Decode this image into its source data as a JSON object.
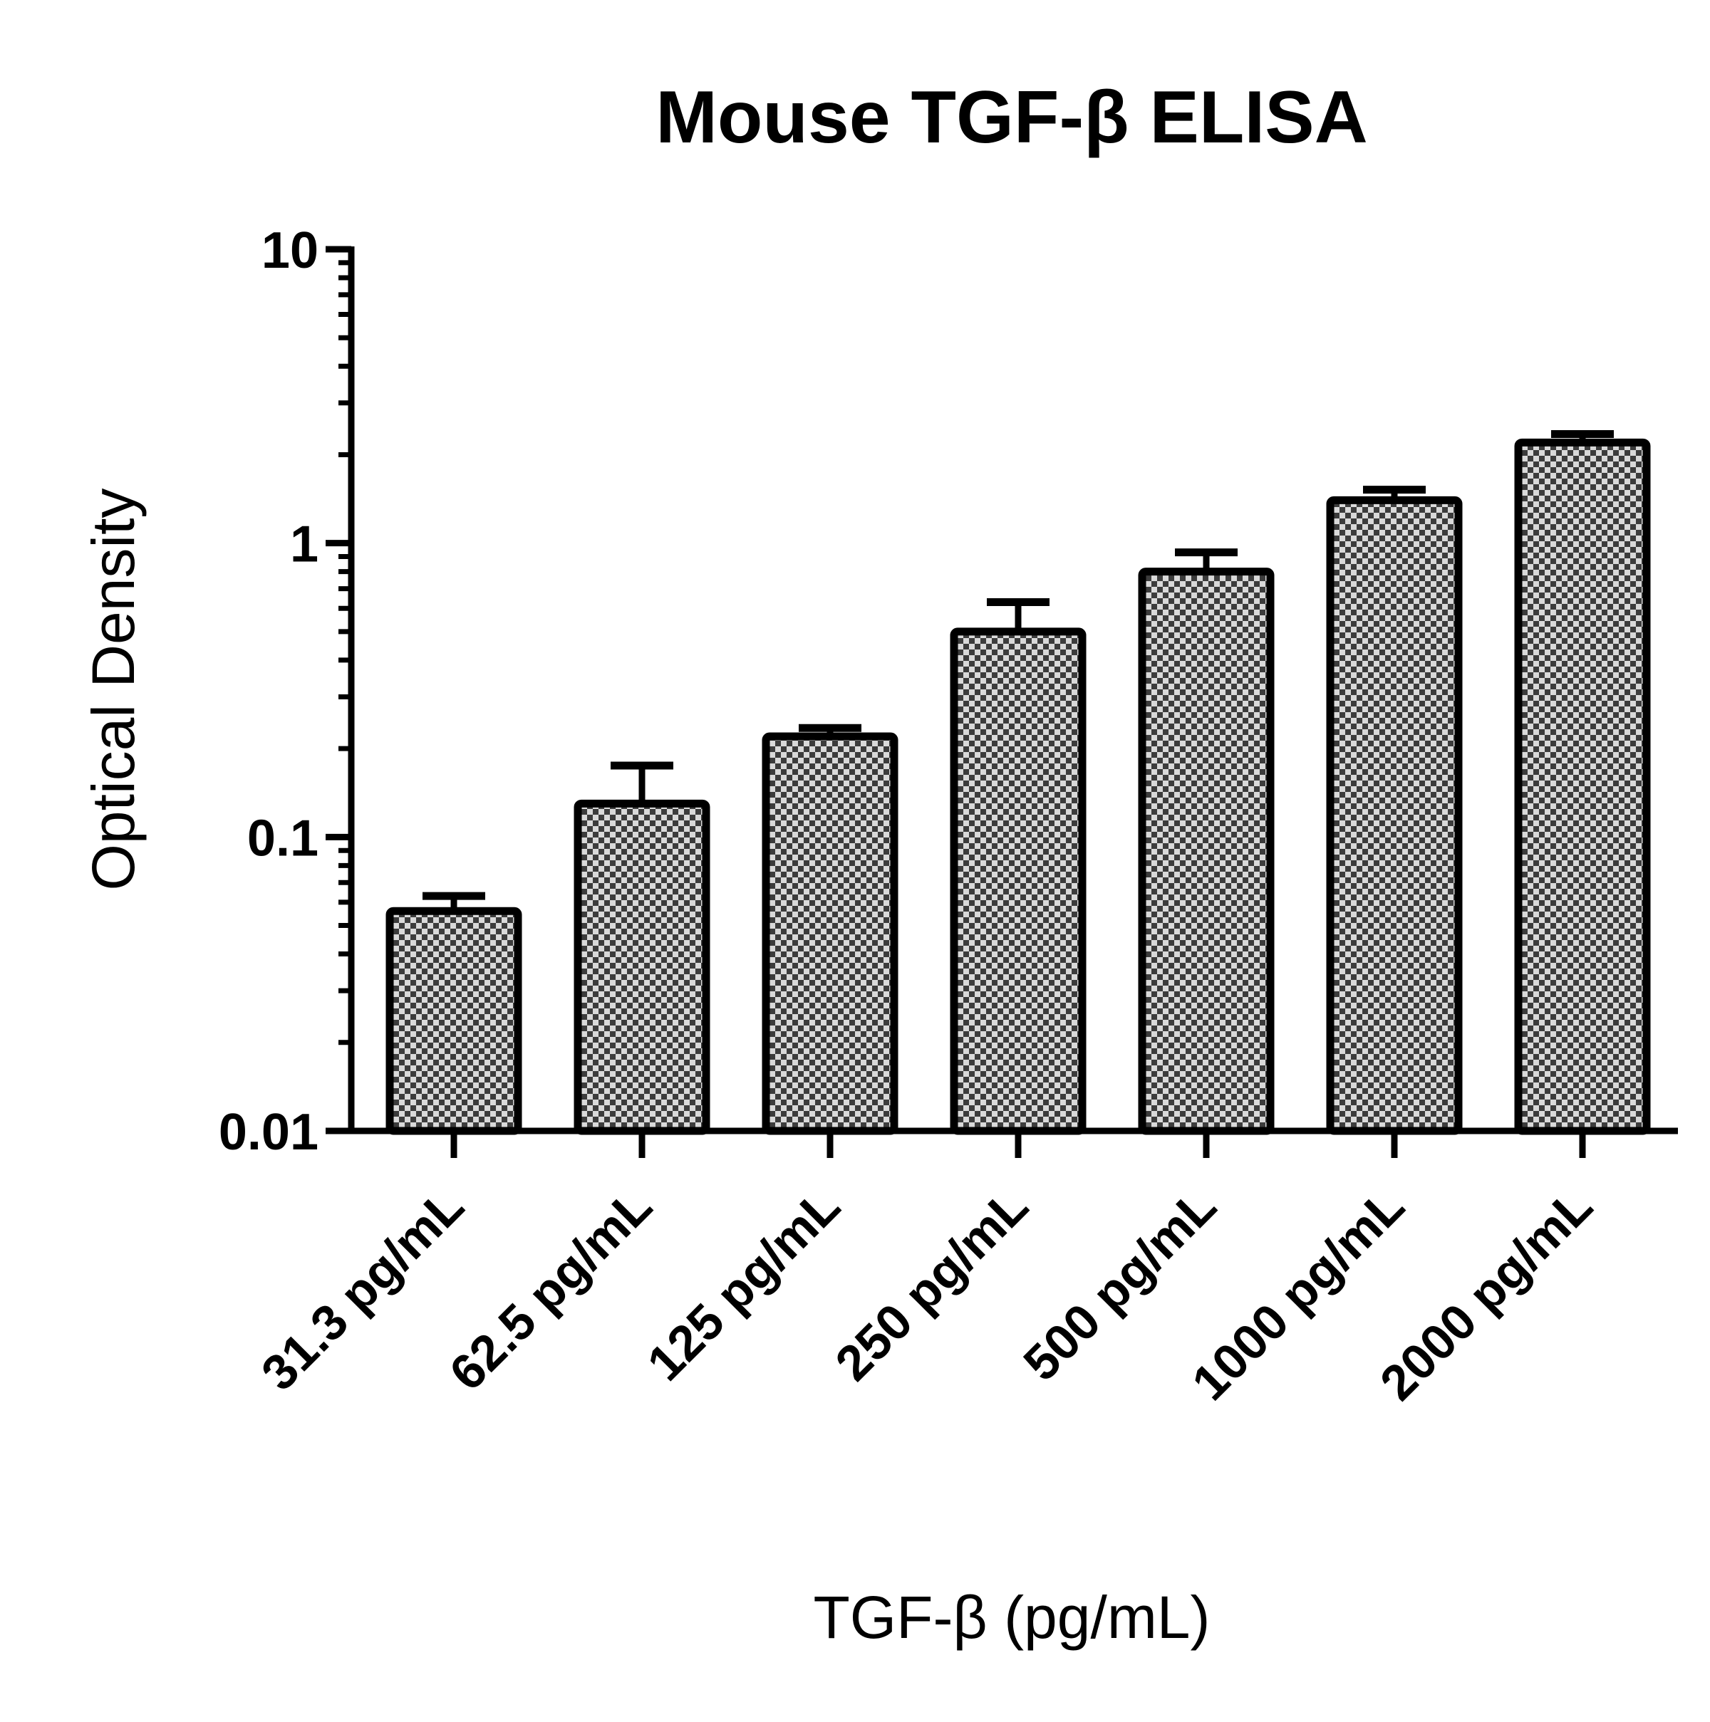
{
  "chart_data": {
    "type": "bar",
    "title": "Mouse TGF-β ELISA",
    "xlabel": "TGF-β (pg/mL)",
    "ylabel": "Optical Density",
    "yscale": "log",
    "ylim": [
      0.01,
      10
    ],
    "yticks": [
      0.01,
      0.1,
      1,
      10
    ],
    "ytick_labels": [
      "0.01",
      "0.1",
      "1",
      "10"
    ],
    "categories": [
      "31.3 pg/mL",
      "62.5 pg/mL",
      "125 pg/mL",
      "250 pg/mL",
      "500 pg/mL",
      "1000 pg/mL",
      "2000 pg/mL"
    ],
    "values": [
      0.056,
      0.13,
      0.22,
      0.5,
      0.8,
      1.4,
      2.2
    ],
    "error_upper": [
      0.063,
      0.175,
      0.235,
      0.63,
      0.93,
      1.52,
      2.35
    ],
    "bar_pattern": "checkerboard",
    "colors": {
      "bar_stroke": "#000000",
      "bar_fill_dark": "#3c3c3c",
      "bar_fill_light": "#d9d9d9"
    },
    "grid": false,
    "legend": "none"
  }
}
